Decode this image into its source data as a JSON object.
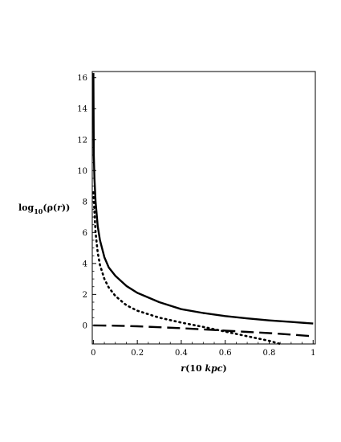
{
  "chart_data": {
    "type": "line",
    "xlabel": {
      "var": "r",
      "open": "(",
      "num": "10 ",
      "unit": "kpc",
      "close": ")"
    },
    "ylabel": {
      "pre": "log",
      "sub": "10",
      "open": "(",
      "fn": "ρ",
      "mid": "(",
      "var": "r",
      "close": "))"
    },
    "xlim": [
      -0.005,
      1.01
    ],
    "ylim": [
      -1.2,
      16.4
    ],
    "x_ticks": [
      0,
      0.2,
      0.4,
      0.6,
      0.8,
      1
    ],
    "x_tick_labels": [
      "0",
      "0.2",
      "0.4",
      "0.6",
      "0.8",
      "1"
    ],
    "y_ticks": [
      0,
      2,
      4,
      6,
      8,
      10,
      12,
      14,
      16
    ],
    "y_tick_labels": [
      "0",
      "2",
      "4",
      "6",
      "8",
      "10",
      "12",
      "14",
      "16"
    ],
    "grid": false,
    "series": [
      {
        "style": "solid",
        "x": [
          0.0,
          0.002,
          0.005,
          0.01,
          0.02,
          0.03,
          0.05,
          0.07,
          0.1,
          0.15,
          0.2,
          0.3,
          0.4,
          0.5,
          0.6,
          0.7,
          0.8,
          0.9,
          1.0
        ],
        "y": [
          16.3,
          11.0,
          9.5,
          8.0,
          6.4,
          5.5,
          4.4,
          3.75,
          3.2,
          2.55,
          2.1,
          1.5,
          1.05,
          0.8,
          0.6,
          0.45,
          0.32,
          0.22,
          0.12
        ]
      },
      {
        "style": "dotted",
        "x": [
          0.0,
          0.01,
          0.02,
          0.03,
          0.05,
          0.07,
          0.1,
          0.15,
          0.2,
          0.3,
          0.4,
          0.5,
          0.6,
          0.7,
          0.8,
          0.85
        ],
        "y": [
          8.6,
          6.0,
          4.7,
          3.9,
          3.0,
          2.45,
          1.9,
          1.3,
          0.95,
          0.5,
          0.18,
          -0.1,
          -0.4,
          -0.7,
          -1.0,
          -1.2
        ]
      },
      {
        "style": "dashed",
        "x": [
          0.0,
          0.1,
          0.2,
          0.3,
          0.4,
          0.5,
          0.6,
          0.7,
          0.8,
          0.9,
          1.0
        ],
        "y": [
          0.0,
          -0.02,
          -0.06,
          -0.12,
          -0.18,
          -0.26,
          -0.34,
          -0.42,
          -0.5,
          -0.6,
          -0.7
        ]
      }
    ]
  }
}
